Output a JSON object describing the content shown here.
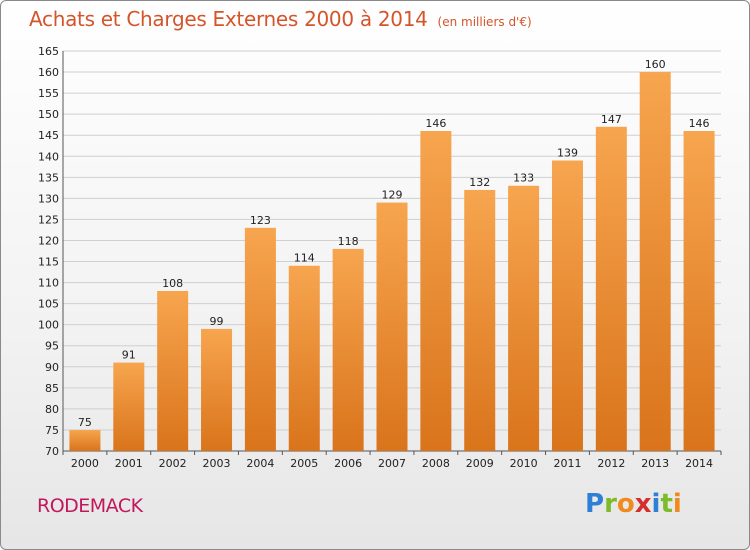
{
  "header": {
    "title": "Achats et Charges Externes 2000 à 2014",
    "subtitle": "(en milliers d'€)"
  },
  "footer": {
    "commune": "RODEMACK",
    "logo_letters": [
      "P",
      "r",
      "o",
      "x",
      "i",
      "t",
      "i"
    ],
    "logo_colors": [
      "#2e7fd6",
      "#7cbc2a",
      "#f08a1c",
      "#d62e2e",
      "#2e7fd6",
      "#7cbc2a",
      "#f08a1c"
    ]
  },
  "colors": {
    "bar_top": "#f7a54f",
    "bar_bottom": "#d9741b",
    "grid": "#cfcfcf",
    "title": "#d4552a"
  },
  "chart_data": {
    "type": "bar",
    "title": "Achats et Charges Externes 2000 à 2014",
    "subtitle": "(en milliers d'€)",
    "xlabel": "",
    "ylabel": "",
    "categories": [
      "2000",
      "2001",
      "2002",
      "2003",
      "2004",
      "2005",
      "2006",
      "2007",
      "2008",
      "2009",
      "2010",
      "2011",
      "2012",
      "2013",
      "2014"
    ],
    "values": [
      75,
      91,
      108,
      99,
      123,
      114,
      118,
      129,
      146,
      132,
      133,
      139,
      147,
      160,
      146
    ],
    "ylim": [
      70,
      165
    ],
    "yticks": [
      70,
      75,
      80,
      85,
      90,
      95,
      100,
      105,
      110,
      115,
      120,
      125,
      130,
      135,
      140,
      145,
      150,
      155,
      160,
      165
    ],
    "grid": true,
    "legend": "none"
  }
}
